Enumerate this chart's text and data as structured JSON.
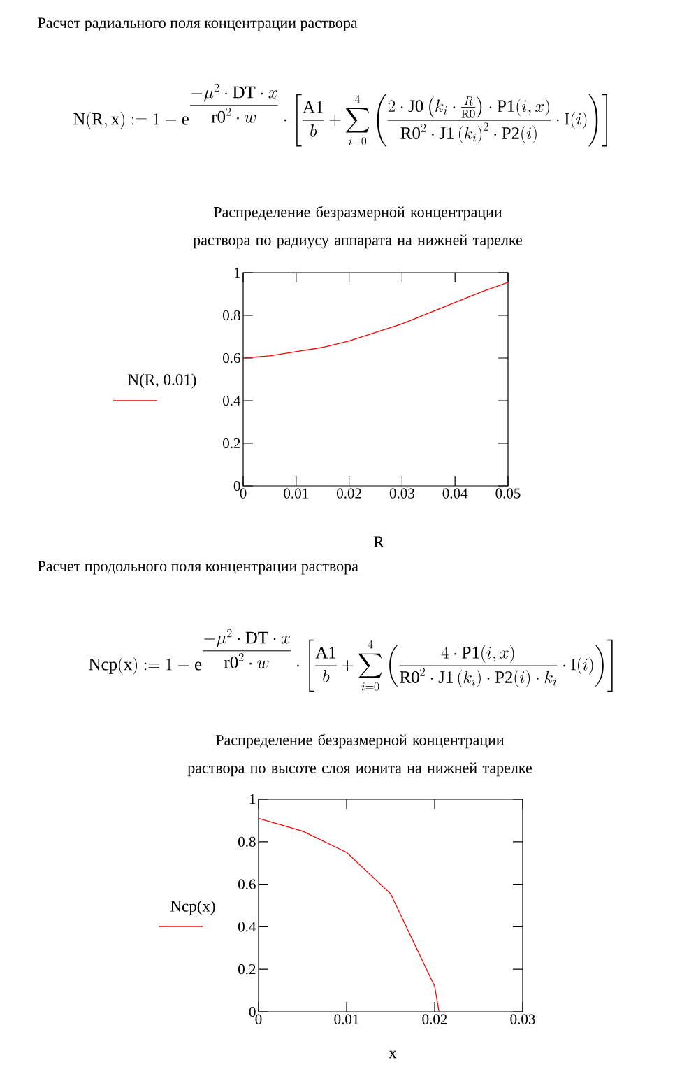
{
  "chart_data": [
    {
      "type": "line",
      "title": "Распределение безразмерной концентрации раствора по радиусу аппарата на нижней тарелке",
      "xlabel": "R",
      "ylabel": "N(R, 0.01)",
      "annotations": [
        "Расчет радиального поля концентрации раствора",
        "\\mathrm{N(R,x)} := 1 - \\mathrm{e}^{\\dfrac{-\\mu^{2}\\cdot \\mathrm{DT}\\cdot x}{\\mathrm{r0}^{2}\\cdot w}}\\cdot\\left[\\frac{\\mathrm{A1}}{b}+\\sum_{i=0}^{4}\\left(\\frac{2\\cdot \\mathrm{J0}\\left(k_{i}\\cdot\\frac{R}{\\mathrm{R0}}\\right)\\cdot \\mathrm{P1}(i,x)}{\\mathrm{R0}^{2}\\cdot \\mathrm{J1}\\left(k_{i}\\right)^{2}\\cdot \\mathrm{P2}(i)}\\cdot \\mathrm{I}(i)\\right)\\right]"
      ],
      "x": [
        0,
        0.005,
        0.01,
        0.015,
        0.02,
        0.025,
        0.03,
        0.035,
        0.04,
        0.045,
        0.05
      ],
      "series": [
        {
          "color": "#ff0000",
          "values": [
            0.6,
            0.61,
            0.63,
            0.65,
            0.68,
            0.72,
            0.76,
            0.81,
            0.86,
            0.91,
            0.955
          ]
        }
      ],
      "xlim": [
        0,
        0.05
      ],
      "ylim": [
        0,
        1
      ],
      "xticks": [
        0,
        0.01,
        0.02,
        0.03,
        0.04,
        0.05
      ],
      "yticks": [
        0,
        0.2,
        0.4,
        0.6,
        0.8,
        1
      ]
    },
    {
      "type": "line",
      "title": "Распределение безразмерной концентрации раствора по высоте слоя ионита на нижней тарелке",
      "xlabel": "x",
      "ylabel": "Ncp(x)",
      "annotations": [
        "Расчет продольного поля концентрации раствора",
        "\\mathrm{Ncp(x)} := 1 - \\mathrm{e}^{\\dfrac{-\\mu^{2}\\cdot \\mathrm{DT}\\cdot x}{\\mathrm{r0}^{2}\\cdot w}}\\cdot\\left[\\frac{\\mathrm{A1}}{b}+\\sum_{i=0}^{4}\\left(\\frac{4\\cdot \\mathrm{P1}(i,x)}{\\mathrm{R0}^{2}\\cdot \\mathrm{J1}\\left(k_{i}\\right)\\cdot \\mathrm{P2}(i)\\cdot k_{i}}\\cdot \\mathrm{I}(i)\\right)\\right]"
      ],
      "x": [
        0,
        0.005,
        0.01,
        0.015,
        0.02,
        0.0205
      ],
      "series": [
        {
          "color": "#ff0000",
          "values": [
            0.91,
            0.85,
            0.75,
            0.555,
            0.12,
            0
          ]
        }
      ],
      "xlim": [
        0,
        0.03
      ],
      "ylim": [
        0,
        1
      ],
      "xticks": [
        0,
        0.01,
        0.02,
        0.03
      ],
      "yticks": [
        0,
        0.2,
        0.4,
        0.6,
        0.8,
        1
      ]
    }
  ]
}
